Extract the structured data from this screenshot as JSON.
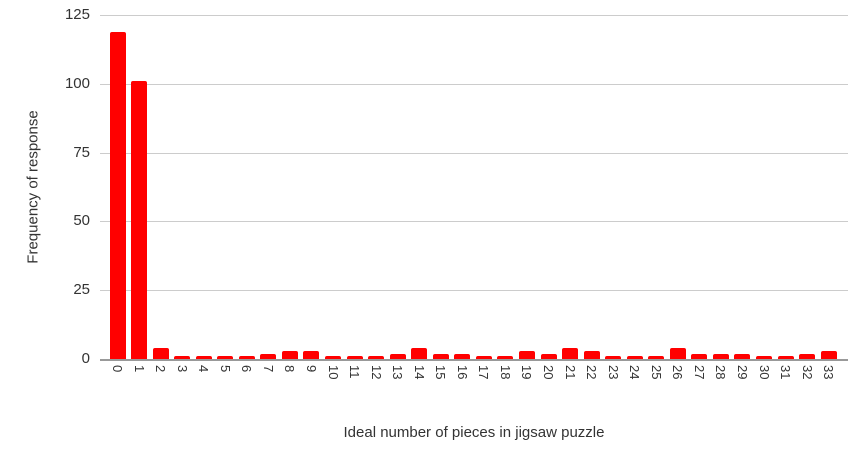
{
  "chart_data": {
    "type": "bar",
    "title": "",
    "xlabel": "Ideal number of pieces in jigsaw puzzle",
    "ylabel": "Frequency of response",
    "categories": [
      "0",
      "1",
      "2",
      "3",
      "4",
      "5",
      "6",
      "7",
      "8",
      "9",
      "10",
      "11",
      "12",
      "13",
      "14",
      "15",
      "16",
      "17",
      "18",
      "19",
      "20",
      "21",
      "22",
      "23",
      "24",
      "25",
      "26",
      "27",
      "28",
      "29",
      "30",
      "31",
      "32",
      "33"
    ],
    "values": [
      119,
      101,
      4,
      1,
      1,
      1,
      1,
      2,
      3,
      3,
      1,
      1,
      1,
      2,
      4,
      2,
      2,
      1,
      1,
      3,
      2,
      4,
      3,
      1,
      1,
      1,
      4,
      2,
      2,
      2,
      1,
      1,
      2,
      3
    ],
    "ylim": [
      0,
      125
    ],
    "yticks": [
      0,
      25,
      50,
      75,
      100,
      125
    ],
    "grid": true,
    "legend": false,
    "legend_position": "none",
    "bar_color": "#ff0000",
    "gridline_color": "#cccccc",
    "baseline_color": "#999999",
    "label_color": "#333333",
    "background_color": "#ffffff"
  }
}
